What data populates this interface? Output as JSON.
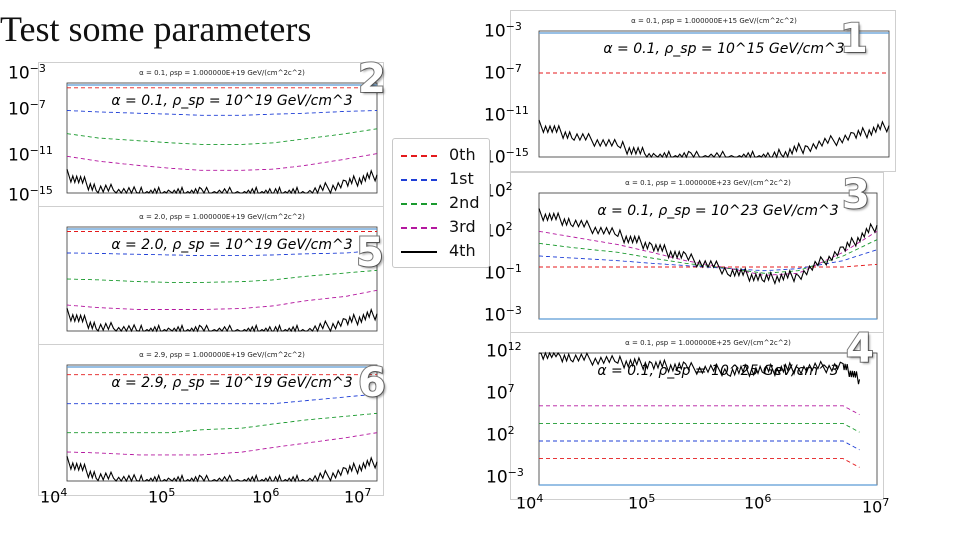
{
  "slide": {
    "title": "Test some parameters"
  },
  "legend": {
    "entries": [
      {
        "label": "0th",
        "color": "#e41a1c",
        "dash": "dashed"
      },
      {
        "label": "1st",
        "color": "#1f3fd6",
        "dash": "dashed"
      },
      {
        "label": "2nd",
        "color": "#1a9a2e",
        "dash": "dashed"
      },
      {
        "label": "3rd",
        "color": "#b4179f",
        "dash": "dashed"
      },
      {
        "label": "4th",
        "color": "#000000",
        "dash": "solid"
      }
    ]
  },
  "colors": {
    "reference_line": "#5b9bd5"
  },
  "axis_labels": {
    "left_y": [
      "10^-3",
      "10^-7",
      "10^-11",
      "10^-15"
    ],
    "mid_y_top": [
      "10^-3",
      "10^-7",
      "10^-11",
      "10^-15"
    ],
    "mid_y_bottom": [
      "10^2",
      "10^2",
      "10^-1",
      "10^-3"
    ],
    "right_y": [
      "10^12",
      "10^7",
      "10^2",
      "10^-3"
    ],
    "bottom_x": [
      "10^4",
      "10^5",
      "10^6",
      "10^7"
    ]
  },
  "chart_data": [
    {
      "id": "1",
      "type": "line",
      "panel_label": "1",
      "title": "α = 0.1, ρsp = 1.000000E+15 GeV/(cm^2c^2)",
      "annotation": "α = 0.1, ρ_sp = 10^15 GeV/cm^3",
      "x_scale": "log",
      "y_scale": "log",
      "xlim": [
        10000,
        10000000
      ],
      "ylim": [
        1e-15,
        0.001
      ],
      "reference_line": 0.001,
      "x": [
        10000,
        20000,
        50000,
        100000,
        200000,
        500000,
        1000000,
        2000000,
        5000000,
        10000000
      ],
      "series": [
        {
          "name": "0th",
          "values": [
            1e-07,
            1e-07,
            1e-07,
            1e-07,
            1e-07,
            1e-07,
            1e-07,
            1e-07,
            1e-07,
            1e-07
          ]
        },
        {
          "name": "4th",
          "values": [
            1e-12,
            1e-13,
            1e-14,
            1e-15,
            1e-15,
            1e-15,
            1e-15,
            1e-14,
            1e-13,
            1e-12
          ]
        }
      ]
    },
    {
      "id": "2",
      "type": "line",
      "panel_label": "2",
      "title": "α = 0.1, ρsp = 1.000000E+19 GeV/(cm^2c^2)",
      "annotation": "α = 0.1, ρ_sp = 10^19 GeV/cm^3",
      "x_scale": "log",
      "y_scale": "log",
      "xlim": [
        10000,
        10000000
      ],
      "ylim": [
        1e-15,
        0.001
      ],
      "reference_line": 0.001,
      "x": [
        10000,
        20000,
        50000,
        100000,
        200000,
        500000,
        1000000,
        2000000,
        5000000,
        10000000
      ],
      "series": [
        {
          "name": "0th",
          "values": [
            0.0003,
            0.0003,
            0.0003,
            0.0003,
            0.0003,
            0.0003,
            0.0003,
            0.0003,
            0.0003,
            0.0003
          ]
        },
        {
          "name": "1st",
          "values": [
            1e-06,
            7e-07,
            5e-07,
            4e-07,
            3e-07,
            3e-07,
            4e-07,
            5e-07,
            8e-07,
            1e-06
          ]
        },
        {
          "name": "2nd",
          "values": [
            3e-09,
            1e-09,
            5e-10,
            3e-10,
            2e-10,
            2e-10,
            3e-10,
            8e-10,
            3e-09,
            1e-08
          ]
        },
        {
          "name": "3rd",
          "values": [
            1e-11,
            3e-12,
            1e-12,
            5e-13,
            3e-13,
            3e-13,
            4e-13,
            1e-12,
            5e-12,
            2e-11
          ]
        },
        {
          "name": "4th",
          "values": [
            1e-13,
            3e-15,
            1e-15,
            1e-15,
            1e-15,
            1e-15,
            1e-15,
            1e-15,
            1e-14,
            1e-13
          ]
        }
      ]
    },
    {
      "id": "3",
      "type": "line",
      "panel_label": "3",
      "title": "α = 0.1, ρsp = 1.000000E+23 GeV/(cm^2c^2)",
      "annotation": "α = 0.1, ρ_sp = 10^23 GeV/cm^3",
      "x_scale": "log",
      "y_scale": "log",
      "xlim": [
        10000,
        10000000
      ],
      "ylim": [
        0.001,
        1000
      ],
      "reference_line": 0.001,
      "x": [
        10000,
        20000,
        50000,
        100000,
        200000,
        500000,
        1000000,
        2000000,
        5000000,
        10000000
      ],
      "series": [
        {
          "name": "0th",
          "values": [
            0.3,
            0.3,
            0.3,
            0.3,
            0.3,
            0.3,
            0.3,
            0.3,
            0.3,
            0.4
          ]
        },
        {
          "name": "1st",
          "values": [
            1,
            0.8,
            0.6,
            0.45,
            0.35,
            0.25,
            0.2,
            0.25,
            0.6,
            2
          ]
        },
        {
          "name": "2nd",
          "values": [
            4,
            2.5,
            1.5,
            0.8,
            0.45,
            0.25,
            0.15,
            0.2,
            1,
            6
          ]
        },
        {
          "name": "3rd",
          "values": [
            15,
            8,
            3.5,
            1.5,
            0.6,
            0.25,
            0.12,
            0.15,
            1.5,
            15
          ]
        },
        {
          "name": "4th",
          "values": [
            100,
            40,
            10,
            3,
            0.8,
            0.2,
            0.08,
            0.12,
            2,
            30
          ]
        }
      ]
    },
    {
      "id": "4",
      "type": "line",
      "panel_label": "4",
      "title": "α = 0.1, ρsp = 1.000000E+25 GeV/(cm^2c^2)",
      "annotation": "α = 0.1, ρ_sp = 10^25 GeV/cm^3",
      "x_scale": "log",
      "y_scale": "log",
      "xlim": [
        10000,
        10000000
      ],
      "ylim": [
        0.001,
        1000000000000.0
      ],
      "reference_line": 0.001,
      "x": [
        10000,
        20000,
        50000,
        100000,
        200000,
        500000,
        1000000,
        2000000,
        5000000,
        7000000
      ],
      "series": [
        {
          "name": "0th",
          "values": [
            1,
            1,
            1,
            1,
            1,
            1,
            1,
            1,
            1,
            0.1
          ]
        },
        {
          "name": "1st",
          "values": [
            100,
            100,
            100,
            100,
            100,
            100,
            100,
            100,
            100,
            10
          ]
        },
        {
          "name": "2nd",
          "values": [
            10000,
            10000,
            10000,
            10000,
            10000,
            10000,
            10000,
            10000,
            10000,
            1000
          ]
        },
        {
          "name": "3rd",
          "values": [
            1000000,
            1000000,
            1000000,
            1000000,
            1000000,
            1000000,
            1000000,
            1000000,
            1000000,
            100000
          ]
        },
        {
          "name": "4th",
          "values": [
            1000000000000.0,
            300000000000.0,
            100000000000.0,
            50000000000.0,
            20000000000.0,
            10000000000.0,
            10000000000.0,
            20000000000.0,
            30000000000.0,
            1000000000.0
          ]
        }
      ]
    },
    {
      "id": "5",
      "type": "line",
      "panel_label": "5",
      "title": "α = 2.0, ρsp = 1.000000E+19 GeV/(cm^2c^2)",
      "annotation": "α = 2.0, ρ_sp = 10^19 GeV/cm^3",
      "x_scale": "log",
      "y_scale": "log",
      "xlim": [
        10000,
        10000000
      ],
      "ylim": [
        1e-15,
        0.001
      ],
      "reference_line": 0.001,
      "x": [
        10000,
        20000,
        50000,
        100000,
        200000,
        500000,
        1000000,
        2000000,
        5000000,
        10000000
      ],
      "series": [
        {
          "name": "0th",
          "values": [
            0.0003,
            0.0003,
            0.0003,
            0.0003,
            0.0003,
            0.0003,
            0.0003,
            0.0003,
            0.0003,
            0.0003
          ]
        },
        {
          "name": "1st",
          "values": [
            1e-06,
            9e-07,
            7e-07,
            6e-07,
            5e-07,
            5e-07,
            6e-07,
            8e-07,
            1e-06,
            2e-06
          ]
        },
        {
          "name": "2nd",
          "values": [
            1e-09,
            8e-10,
            5e-10,
            4e-10,
            4e-10,
            5e-10,
            8e-10,
            2e-09,
            5e-09,
            1e-08
          ]
        },
        {
          "name": "3rd",
          "values": [
            1e-12,
            5e-13,
            3e-13,
            3e-13,
            3e-13,
            4e-13,
            8e-13,
            3e-12,
            1e-11,
            5e-11
          ]
        },
        {
          "name": "4th",
          "values": [
            1e-13,
            3e-15,
            1e-15,
            1e-15,
            1e-15,
            1e-15,
            1e-15,
            1e-15,
            1e-14,
            1e-13
          ]
        }
      ]
    },
    {
      "id": "6",
      "type": "line",
      "panel_label": "6",
      "title": "α = 2.9, ρsp = 1.000000E+19 GeV/(cm^2c^2)",
      "annotation": "α = 2.9, ρ_sp = 10^19 GeV/cm^3",
      "x_scale": "log",
      "y_scale": "log",
      "xlim": [
        10000,
        10000000
      ],
      "ylim": [
        1e-15,
        0.001
      ],
      "reference_line": 0.001,
      "x": [
        10000,
        20000,
        50000,
        100000,
        200000,
        500000,
        1000000,
        2000000,
        5000000,
        10000000
      ],
      "series": [
        {
          "name": "0th",
          "values": [
            0.0001,
            0.0001,
            0.0001,
            0.0001,
            0.0001,
            0.0001,
            0.0001,
            0.0001,
            0.0001,
            0.0001
          ]
        },
        {
          "name": "1st",
          "values": [
            1e-07,
            1e-07,
            1e-07,
            1e-07,
            1e-07,
            1e-07,
            1e-07,
            2e-07,
            5e-07,
            1e-06
          ]
        },
        {
          "name": "2nd",
          "values": [
            1e-10,
            1e-10,
            1e-10,
            1e-10,
            2e-10,
            3e-10,
            8e-10,
            2e-09,
            5e-09,
            1e-08
          ]
        },
        {
          "name": "3rd",
          "values": [
            1e-12,
            8e-13,
            5e-13,
            5e-13,
            5e-13,
            1e-12,
            3e-12,
            8e-12,
            3e-11,
            1e-10
          ]
        },
        {
          "name": "4th",
          "values": [
            1e-13,
            3e-15,
            1e-15,
            1e-15,
            1e-15,
            1e-15,
            1e-15,
            1e-15,
            1e-14,
            1e-13
          ]
        }
      ]
    }
  ]
}
